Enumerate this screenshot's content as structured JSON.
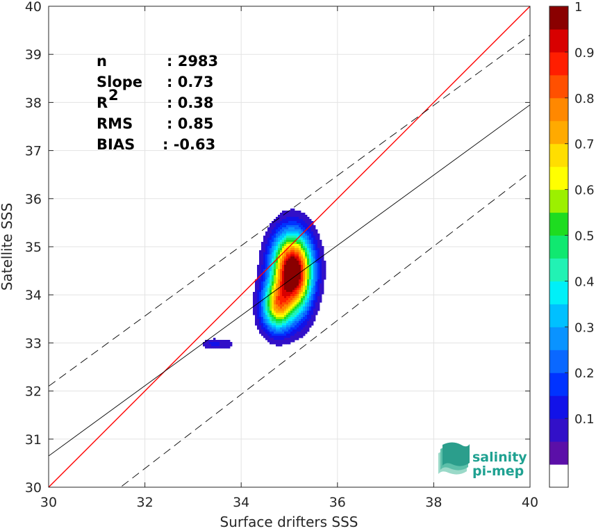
{
  "chart_data": {
    "type": "contour",
    "xlabel": "Surface drifters SSS",
    "ylabel": "Satellite SSS",
    "xlim": [
      30,
      40
    ],
    "ylim": [
      30,
      40
    ],
    "xticks": [
      30,
      32,
      34,
      36,
      38,
      40
    ],
    "yticks": [
      30,
      31,
      32,
      33,
      34,
      35,
      36,
      37,
      38,
      39,
      40
    ],
    "grid": true,
    "stats": [
      {
        "label": "n",
        "value": ": 2983"
      },
      {
        "label": "Slope",
        "value": ": 0.73"
      },
      {
        "label": "R",
        "sup": "2",
        "value": ": 0.38"
      },
      {
        "label": "RMS",
        "value": ": 0.85"
      },
      {
        "label": "BIAS",
        "value": ": -0.63"
      }
    ],
    "lines": {
      "identity": {
        "x": [
          30,
          40
        ],
        "y": [
          30,
          40
        ],
        "color": "#ff0000"
      },
      "fit": {
        "x": [
          30,
          40
        ],
        "y": [
          30.65,
          37.95
        ],
        "color": "#000000"
      },
      "fit_upper": {
        "x": [
          30,
          40
        ],
        "y": [
          32.1,
          39.4
        ],
        "color": "#000000",
        "dash": true
      },
      "fit_lower": {
        "x": [
          30,
          40
        ],
        "y": [
          28.85,
          36.55
        ],
        "color": "#000000",
        "dash": true
      }
    },
    "density_peaks": [
      {
        "x": 35.05,
        "y": 34.55,
        "peak": 1.0,
        "sx": 0.28,
        "sy": 0.5
      },
      {
        "x": 34.75,
        "y": 33.75,
        "peak": 0.62,
        "sx": 0.22,
        "sy": 0.35
      },
      {
        "x": 35.2,
        "y": 34.1,
        "peak": 0.2,
        "sx": 0.2,
        "sy": 0.5
      },
      {
        "x": 33.45,
        "y": 32.98,
        "peak": 0.12,
        "sx": 0.18,
        "sy": 0.08
      },
      {
        "x": 33.75,
        "y": 32.98,
        "peak": 0.06,
        "sx": 0.07,
        "sy": 0.06
      }
    ],
    "colorbar": {
      "ticks": [
        "0.1",
        "0.2",
        "0.3",
        "0.4",
        "0.5",
        "0.6",
        "0.7",
        "0.8",
        "0.9",
        "1"
      ],
      "levels": [
        0.0,
        0.05,
        0.1,
        0.15,
        0.2,
        0.25,
        0.3,
        0.35,
        0.4,
        0.45,
        0.5,
        0.55,
        0.6,
        0.65,
        0.7,
        0.75,
        0.8,
        0.85,
        0.9,
        0.95,
        1.0
      ],
      "colors": [
        "#ffffff",
        "#5b0fa8",
        "#3210c8",
        "#1212e8",
        "#0033ff",
        "#0a68ff",
        "#0a93ff",
        "#00c0ff",
        "#00f0f8",
        "#22f2b4",
        "#10e870",
        "#1edc20",
        "#9cf000",
        "#ffff00",
        "#ffde00",
        "#ffaa00",
        "#ff8800",
        "#ff5000",
        "#ff1e00",
        "#d80000",
        "#8a0000"
      ]
    }
  },
  "logo": {
    "line1": "salinity",
    "line2": "pi-mep"
  }
}
